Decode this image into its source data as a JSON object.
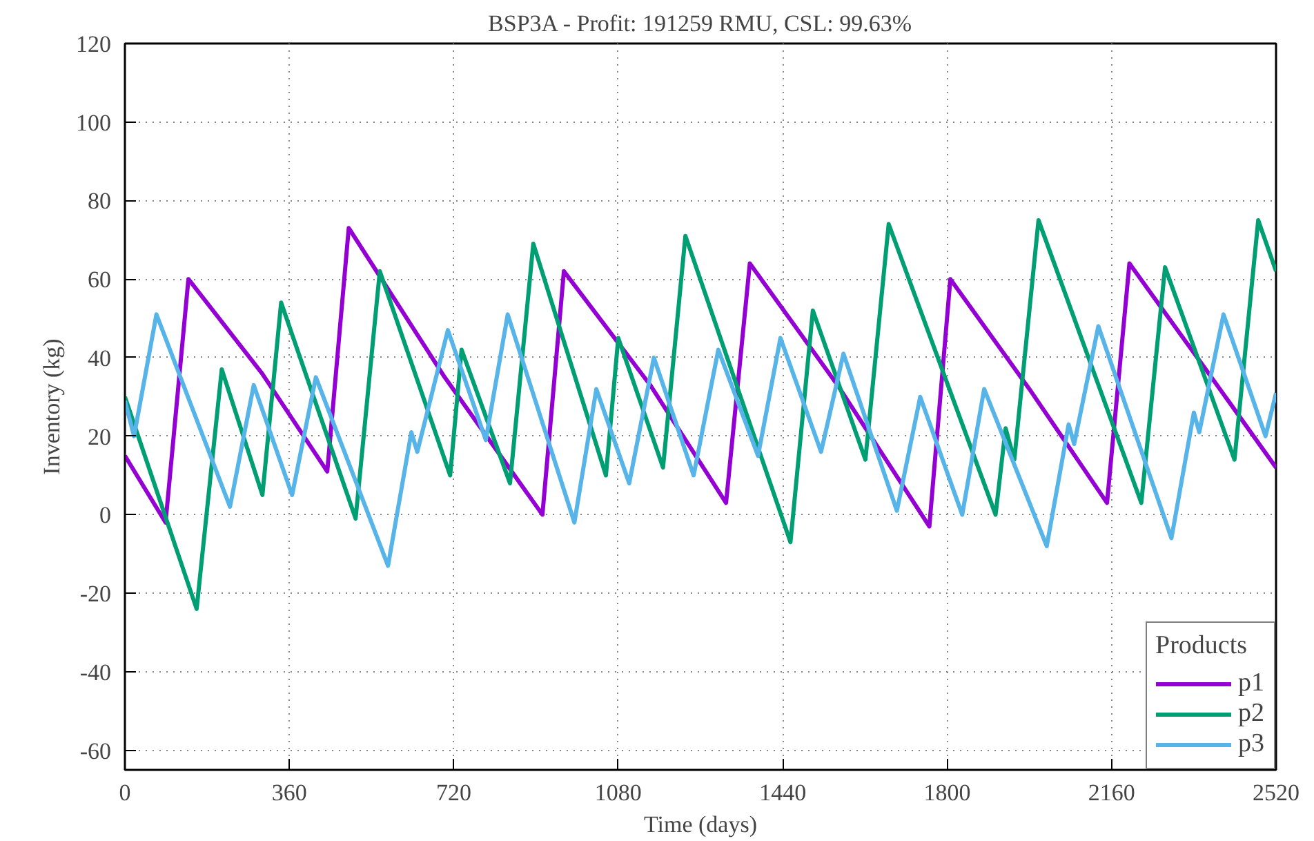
{
  "chart_data": {
    "type": "line",
    "title": "BSP3A - Profit: 191259 RMU, CSL: 99.63%",
    "xlabel": "Time (days)",
    "ylabel": "Inventory (kg)",
    "legend_title": "Products",
    "xlim": [
      0,
      2520
    ],
    "xticks": [
      0,
      360,
      720,
      1080,
      1440,
      1800,
      2160,
      2520
    ],
    "ylim": [
      -65,
      120
    ],
    "yticks": [
      -60,
      -40,
      -20,
      0,
      20,
      40,
      60,
      80,
      100,
      120
    ],
    "grid": true,
    "legend": "bottom right",
    "marker": "none",
    "line_style": "solid",
    "series": [
      {
        "name": "p1",
        "color": "#9400d3",
        "x": [
          0,
          89,
          139,
          300,
          443,
          490,
          700,
          914,
          961,
          1150,
          1316,
          1368,
          1560,
          1761,
          1807,
          1980,
          2150,
          2199,
          2360,
          2520
        ],
        "values": [
          15,
          -2,
          60,
          36,
          11,
          73,
          35,
          0,
          62,
          33,
          3,
          64,
          33,
          -3,
          60,
          32,
          3,
          64,
          38,
          12
        ]
      },
      {
        "name": "p2",
        "color": "#009e73",
        "x": [
          0,
          157,
          212,
          301,
          342,
          505,
          558,
          712,
          737,
          843,
          894,
          1053,
          1080,
          1178,
          1227,
          1457,
          1506,
          1621,
          1672,
          1906,
          1928,
          1947,
          2000,
          2225,
          2277,
          2429,
          2481,
          2520
        ],
        "values": [
          30,
          -24,
          37,
          5,
          54,
          -1,
          62,
          10,
          42,
          8,
          69,
          10,
          45,
          12,
          71,
          -7,
          52,
          14,
          74,
          0,
          22,
          14,
          75,
          3,
          63,
          14,
          75,
          62
        ]
      },
      {
        "name": "p3",
        "color": "#56b4e9",
        "x": [
          0,
          20,
          69,
          230,
          282,
          366,
          418,
          576,
          627,
          640,
          707,
          790,
          838,
          984,
          1032,
          1104,
          1158,
          1245,
          1299,
          1386,
          1435,
          1524,
          1573,
          1690,
          1741,
          1833,
          1881,
          2018,
          2066,
          2078,
          2131,
          2291,
          2340,
          2352,
          2405,
          2497,
          2520
        ],
        "values": [
          29,
          20,
          51,
          2,
          33,
          5,
          35,
          -13,
          21,
          16,
          47,
          19,
          51,
          -2,
          32,
          8,
          40,
          10,
          42,
          15,
          45,
          16,
          41,
          1,
          30,
          0,
          32,
          -8,
          23,
          18,
          48,
          -6,
          26,
          21,
          51,
          20,
          31
        ]
      }
    ]
  }
}
